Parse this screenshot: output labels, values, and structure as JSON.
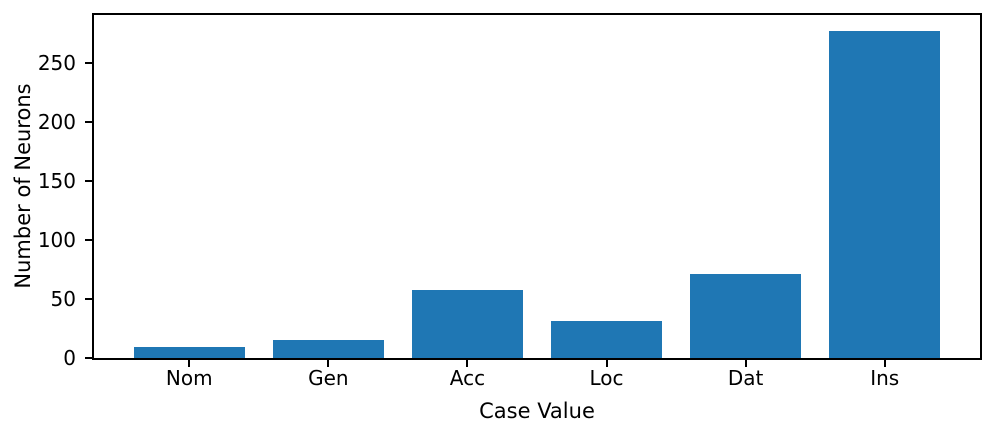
{
  "figure": {
    "background": "#ffffff",
    "spine_color": "#000000",
    "text_color": "#000000"
  },
  "chart_data": {
    "type": "bar",
    "title": "",
    "xlabel": "Case Value",
    "ylabel": "Number of Neurons",
    "categories": [
      "Nom",
      "Gen",
      "Acc",
      "Loc",
      "Dat",
      "Ins"
    ],
    "values": [
      9,
      15,
      58,
      31,
      71,
      277
    ],
    "yticks": [
      0,
      50,
      100,
      150,
      200,
      250
    ],
    "ylim": [
      0,
      290.85
    ],
    "xlim": [
      -0.685,
      5.685
    ],
    "bar_width_frac": 0.8,
    "bar_color": "#1f77b4",
    "grid": false,
    "legend_position": "none"
  }
}
